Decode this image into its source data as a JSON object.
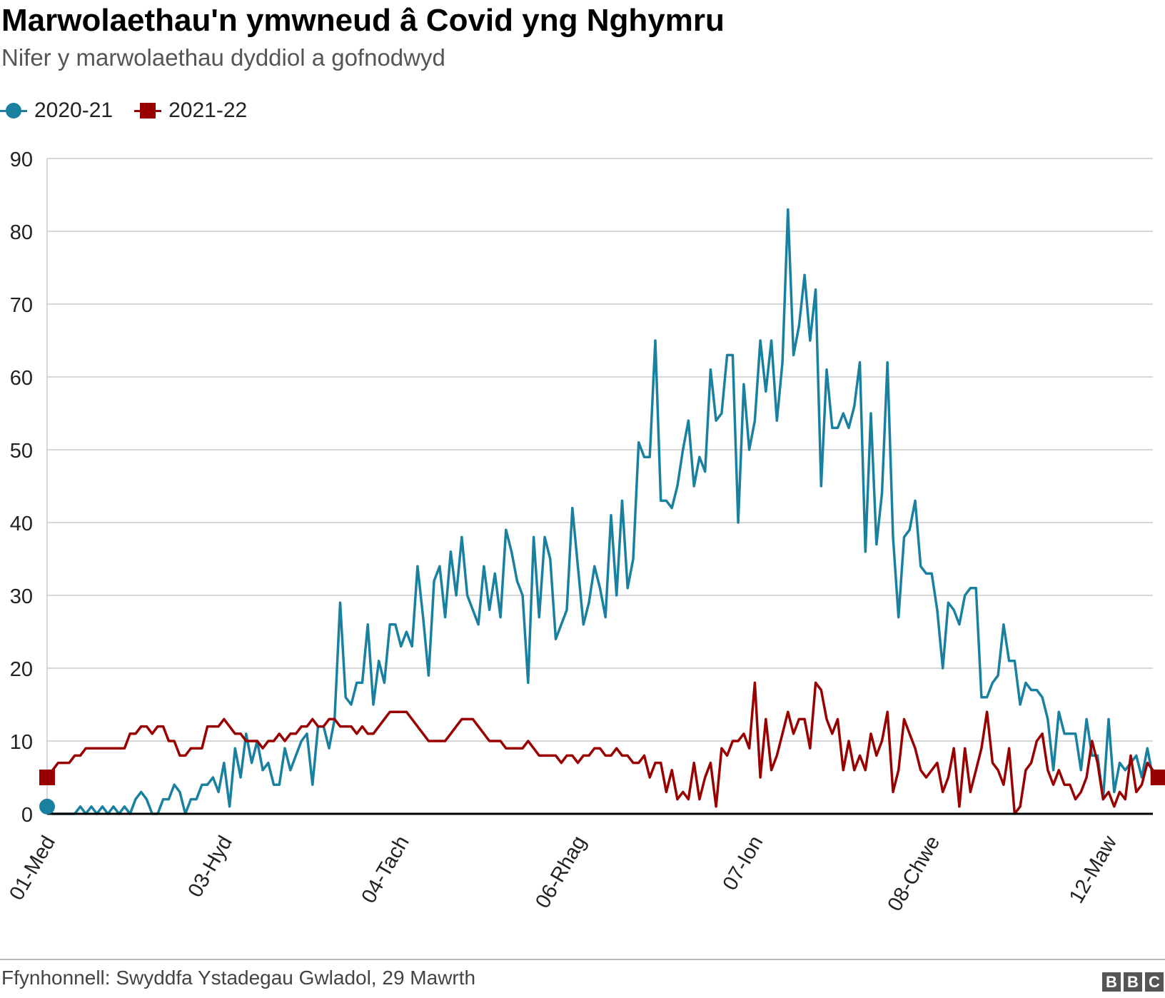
{
  "header": {
    "title": "Marwolaethau'n ymwneud â Covid yng Nghymru",
    "subtitle": "Nifer y marwolaethau dyddiol a gofnodwyd"
  },
  "legend": {
    "items": [
      {
        "label": "2020-21",
        "color": "#1a80a0",
        "marker": "circle"
      },
      {
        "label": "2021-22",
        "color": "#990000",
        "marker": "square"
      }
    ]
  },
  "footer": {
    "source": "Ffynhonnell: Swyddfa Ystadegau Gwladol, 29 Mawrth",
    "logo_letters": [
      "B",
      "B",
      "C"
    ]
  },
  "chart_data": {
    "type": "line",
    "x_unit": "day",
    "x_start": "01-Med",
    "x_tick_labels": [
      {
        "label": "01-Med",
        "day": 0
      },
      {
        "label": "03-Hyd",
        "day": 32
      },
      {
        "label": "04-Tach",
        "day": 64
      },
      {
        "label": "06-Rhag",
        "day": 96
      },
      {
        "label": "07-Ion",
        "day": 128
      },
      {
        "label": "08-Chwe",
        "day": 160
      },
      {
        "label": "12-Maw",
        "day": 192
      }
    ],
    "xlim": [
      0,
      200
    ],
    "ylim": [
      0,
      90
    ],
    "y_ticks": [
      0,
      10,
      20,
      30,
      40,
      50,
      60,
      70,
      80,
      90
    ],
    "grid": true,
    "legend_position": "top-left",
    "series": [
      {
        "name": "2020-21",
        "color": "#1a80a0",
        "values": [
          1,
          0,
          0,
          0,
          0,
          0,
          1,
          0,
          1,
          0,
          1,
          0,
          1,
          0,
          1,
          0,
          2,
          3,
          2,
          0,
          0,
          2,
          2,
          4,
          3,
          0,
          2,
          2,
          4,
          4,
          5,
          3,
          7,
          1,
          9,
          5,
          11,
          7,
          10,
          6,
          7,
          4,
          4,
          9,
          6,
          8,
          10,
          11,
          4,
          12,
          12,
          9,
          13,
          29,
          16,
          15,
          18,
          18,
          26,
          15,
          21,
          18,
          26,
          26,
          23,
          25,
          23,
          34,
          27,
          19,
          32,
          34,
          27,
          36,
          30,
          38,
          30,
          28,
          26,
          34,
          28,
          33,
          27,
          39,
          36,
          32,
          30,
          18,
          38,
          27,
          38,
          35,
          24,
          26,
          28,
          42,
          34,
          26,
          29,
          34,
          31,
          27,
          41,
          30,
          43,
          31,
          35,
          51,
          49,
          49,
          65,
          43,
          43,
          42,
          45,
          50,
          54,
          45,
          49,
          47,
          61,
          54,
          55,
          63,
          63,
          40,
          59,
          50,
          54,
          65,
          58,
          65,
          54,
          62,
          83,
          63,
          67,
          74,
          65,
          72,
          45,
          61,
          53,
          53,
          55,
          53,
          56,
          62,
          36,
          55,
          37,
          44,
          62,
          38,
          27,
          38,
          39,
          43,
          34,
          33,
          33,
          28,
          20,
          29,
          28,
          26,
          30,
          31,
          31,
          16,
          16,
          18,
          19,
          26,
          21,
          21,
          15,
          18,
          17,
          17,
          16,
          13,
          6,
          14,
          11,
          11,
          11,
          6,
          13,
          8,
          8,
          2,
          13,
          3,
          7,
          6,
          7,
          8,
          5,
          9,
          5
        ]
      },
      {
        "name": "2021-22",
        "color": "#990000",
        "values": [
          5,
          6,
          7,
          7,
          7,
          8,
          8,
          9,
          9,
          9,
          9,
          9,
          9,
          9,
          9,
          11,
          11,
          12,
          12,
          11,
          12,
          12,
          10,
          10,
          8,
          8,
          9,
          9,
          9,
          12,
          12,
          12,
          13,
          12,
          11,
          11,
          10,
          10,
          10,
          9,
          10,
          10,
          11,
          10,
          11,
          11,
          12,
          12,
          13,
          12,
          12,
          13,
          13,
          12,
          12,
          12,
          11,
          12,
          11,
          11,
          12,
          13,
          14,
          14,
          14,
          14,
          13,
          12,
          11,
          10,
          10,
          10,
          10,
          11,
          12,
          13,
          13,
          13,
          12,
          11,
          10,
          10,
          10,
          9,
          9,
          9,
          9,
          10,
          9,
          8,
          8,
          8,
          8,
          7,
          8,
          8,
          7,
          8,
          8,
          9,
          9,
          8,
          8,
          9,
          8,
          8,
          7,
          7,
          8,
          5,
          7,
          7,
          3,
          6,
          2,
          3,
          2,
          7,
          2,
          5,
          7,
          1,
          9,
          8,
          10,
          10,
          11,
          9,
          18,
          5,
          13,
          6,
          8,
          11,
          14,
          11,
          13,
          13,
          9,
          18,
          17,
          13,
          11,
          13,
          6,
          10,
          6,
          8,
          6,
          11,
          8,
          10,
          14,
          3,
          6,
          13,
          11,
          9,
          6,
          5,
          6,
          7,
          3,
          5,
          9,
          1,
          9,
          3,
          6,
          9,
          14,
          7,
          6,
          4,
          9,
          0,
          1,
          6,
          7,
          10,
          11,
          6,
          4,
          6,
          4,
          4,
          2,
          3,
          5,
          10,
          7,
          2,
          3,
          1,
          3,
          2,
          8,
          3,
          4,
          7,
          6,
          5
        ]
      }
    ]
  }
}
